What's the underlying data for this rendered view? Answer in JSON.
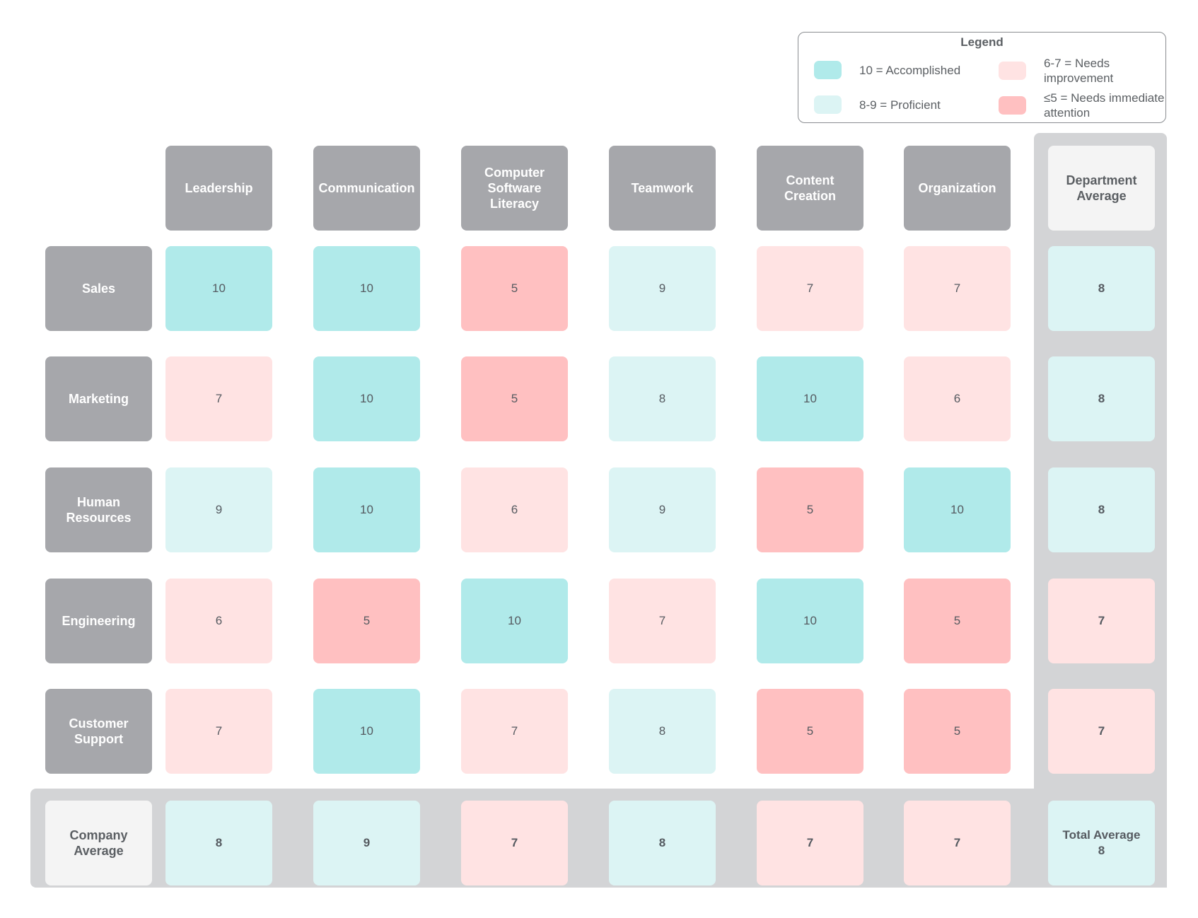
{
  "colors": {
    "accomplished": "#b0eaea",
    "proficient": "#dcf4f4",
    "needs_improvement": "#ffe3e3",
    "needs_attention": "#ffc0c1",
    "header_gray": "#a6a7ab",
    "band_gray": "#d3d4d6",
    "light_tile": "#f4f4f4"
  },
  "legend": {
    "title": "Legend",
    "items": [
      {
        "label": "10 = Accomplished",
        "color": "#b0eaea"
      },
      {
        "label": "8-9 = Proficient",
        "color": "#dcf4f4"
      },
      {
        "label": "6-7 = Needs improvement",
        "color": "#ffe3e3"
      },
      {
        "label": "≤5 = Needs immediate attention",
        "color": "#ffc0c1"
      }
    ]
  },
  "columns": [
    "Leadership",
    "Communication",
    "Computer Software Literacy",
    "Teamwork",
    "Content Creation",
    "Organization"
  ],
  "dept_avg_header": "Department Average",
  "rows": [
    {
      "label": "Sales",
      "scores": [
        10,
        10,
        5,
        9,
        7,
        7
      ],
      "avg": 8
    },
    {
      "label": "Marketing",
      "scores": [
        7,
        10,
        5,
        8,
        10,
        6
      ],
      "avg": 8
    },
    {
      "label": "Human Resources",
      "scores": [
        9,
        10,
        6,
        9,
        5,
        10
      ],
      "avg": 8
    },
    {
      "label": "Engineering",
      "scores": [
        6,
        5,
        10,
        7,
        10,
        5
      ],
      "avg": 7
    },
    {
      "label": "Customer Support",
      "scores": [
        7,
        10,
        7,
        8,
        5,
        5
      ],
      "avg": 7
    }
  ],
  "company_avg": {
    "label": "Company Average",
    "values": [
      8,
      9,
      7,
      8,
      7,
      7
    ]
  },
  "total_avg": {
    "label": "Total Average",
    "value": 8
  }
}
